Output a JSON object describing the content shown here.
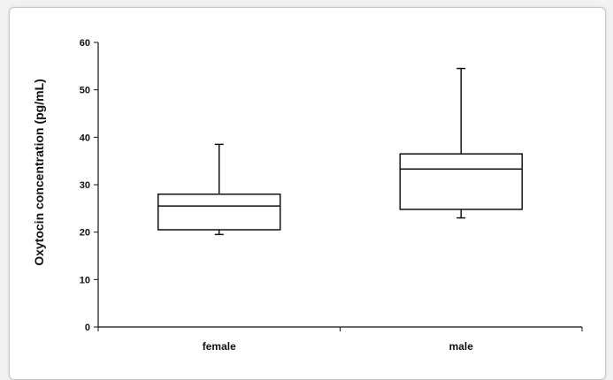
{
  "chart_data": {
    "type": "box",
    "title": "",
    "xlabel": "",
    "ylabel": "Oxytocin concentration (pg/mL)",
    "ylim": [
      0,
      60
    ],
    "yticks": [
      0,
      10,
      20,
      30,
      40,
      50,
      60
    ],
    "grid": false,
    "categories": [
      "female",
      "male"
    ],
    "boxes": [
      {
        "category": "female",
        "min": 19.5,
        "q1": 20.5,
        "median": 25.5,
        "q3": 28.0,
        "max": 38.5
      },
      {
        "category": "male",
        "min": 23.0,
        "q1": 24.8,
        "median": 33.3,
        "q3": 36.5,
        "max": 54.5
      }
    ],
    "colors": {
      "box_fill": "#ffffff",
      "stroke": "#111111",
      "background": "#ffffff"
    }
  }
}
